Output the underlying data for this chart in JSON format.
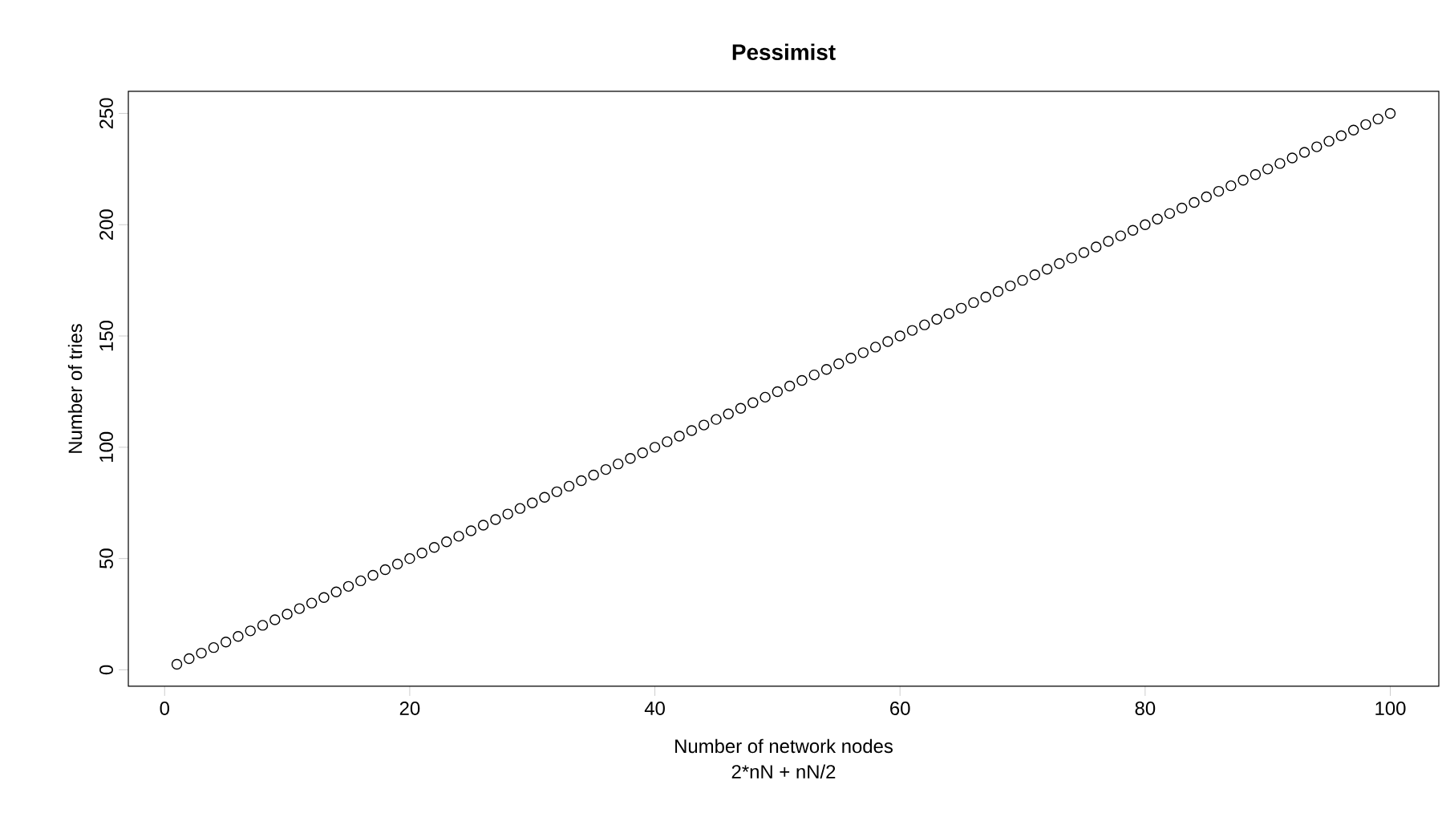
{
  "chart_data": {
    "type": "scatter",
    "title": "Pessimist",
    "subtitle": "2*nN + nN/2",
    "xlabel": "Number of network nodes",
    "ylabel": "Number of tries",
    "x": [
      1,
      2,
      3,
      4,
      5,
      6,
      7,
      8,
      9,
      10,
      11,
      12,
      13,
      14,
      15,
      16,
      17,
      18,
      19,
      20,
      21,
      22,
      23,
      24,
      25,
      26,
      27,
      28,
      29,
      30,
      31,
      32,
      33,
      34,
      35,
      36,
      37,
      38,
      39,
      40,
      41,
      42,
      43,
      44,
      45,
      46,
      47,
      48,
      49,
      50,
      51,
      52,
      53,
      54,
      55,
      56,
      57,
      58,
      59,
      60,
      61,
      62,
      63,
      64,
      65,
      66,
      67,
      68,
      69,
      70,
      71,
      72,
      73,
      74,
      75,
      76,
      77,
      78,
      79,
      80,
      81,
      82,
      83,
      84,
      85,
      86,
      87,
      88,
      89,
      90,
      91,
      92,
      93,
      94,
      95,
      96,
      97,
      98,
      99,
      100
    ],
    "values": [
      2.5,
      5,
      7.5,
      10,
      12.5,
      15,
      17.5,
      20,
      22.5,
      25,
      27.5,
      30,
      32.5,
      35,
      37.5,
      40,
      42.5,
      45,
      47.5,
      50,
      52.5,
      55,
      57.5,
      60,
      62.5,
      65,
      67.5,
      70,
      72.5,
      75,
      77.5,
      80,
      82.5,
      85,
      87.5,
      90,
      92.5,
      95,
      97.5,
      100,
      102.5,
      105,
      107.5,
      110,
      112.5,
      115,
      117.5,
      120,
      122.5,
      125,
      127.5,
      130,
      132.5,
      135,
      137.5,
      140,
      142.5,
      145,
      147.5,
      150,
      152.5,
      155,
      157.5,
      160,
      162.5,
      165,
      167.5,
      170,
      172.5,
      175,
      177.5,
      180,
      182.5,
      185,
      187.5,
      190,
      192.5,
      195,
      197.5,
      200,
      202.5,
      205,
      207.5,
      210,
      212.5,
      215,
      217.5,
      220,
      222.5,
      225,
      227.5,
      230,
      232.5,
      235,
      237.5,
      240,
      242.5,
      245,
      247.5,
      250
    ],
    "color": "#000000",
    "marker": "circle",
    "xlim": [
      -2.96,
      103.96
    ],
    "ylim": [
      -7.4,
      259.9
    ],
    "xticks": [
      0,
      20,
      40,
      60,
      80,
      100
    ],
    "yticks": [
      0,
      50,
      100,
      150,
      200,
      250
    ]
  }
}
